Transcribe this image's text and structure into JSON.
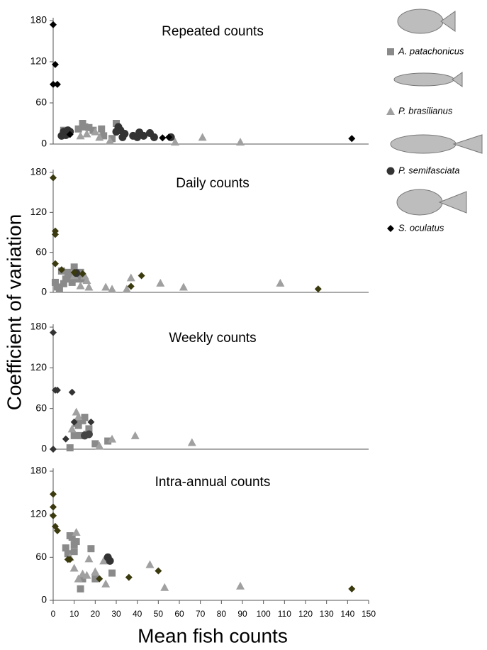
{
  "ylabel": "Coefficient of variation",
  "chart_data": [
    {
      "type": "scatter",
      "title": "Repeated counts",
      "xlim": [
        0,
        150
      ],
      "ylim": [
        0,
        180
      ],
      "yticks": [
        0,
        60,
        120,
        180
      ],
      "series": [
        {
          "name": "A. patachonicus",
          "marker": "square",
          "color": "#8a8a8a",
          "x": [
            5,
            7,
            12,
            14,
            15,
            17,
            19,
            23,
            24,
            28,
            30
          ],
          "values": [
            20,
            18,
            22,
            30,
            25,
            24,
            20,
            22,
            12,
            8,
            30
          ]
        },
        {
          "name": "P. brasilianus",
          "marker": "triangle",
          "color": "#a0a0a0",
          "x": [
            13,
            16,
            20,
            22,
            27,
            58,
            71,
            89
          ],
          "values": [
            12,
            15,
            18,
            10,
            5,
            3,
            10,
            3
          ]
        },
        {
          "name": "P. semifasciata",
          "marker": "circle",
          "color": "#333333",
          "x": [
            4,
            5,
            6,
            6,
            7,
            8,
            30,
            31,
            32,
            33,
            34,
            38,
            40,
            41,
            43,
            46,
            48,
            56
          ],
          "values": [
            12,
            18,
            13,
            15,
            20,
            18,
            18,
            25,
            20,
            10,
            15,
            12,
            10,
            17,
            12,
            16,
            10,
            10
          ]
        },
        {
          "name": "S. oculatus",
          "marker": "diamond",
          "color": "#000000",
          "x": [
            0,
            1,
            0,
            2,
            8,
            52,
            55,
            142
          ],
          "values": [
            174,
            116,
            87,
            87,
            14,
            9,
            10,
            8
          ]
        }
      ]
    },
    {
      "type": "scatter",
      "title": "Daily counts",
      "xlim": [
        0,
        150
      ],
      "ylim": [
        0,
        180
      ],
      "yticks": [
        0,
        60,
        120,
        180
      ],
      "series": [
        {
          "name": "A. patachonicus",
          "marker": "square",
          "color": "#8a8a8a",
          "x": [
            1,
            2,
            3,
            4,
            5,
            6,
            7,
            8,
            9,
            10,
            11,
            12,
            13,
            14
          ],
          "values": [
            15,
            8,
            5,
            32,
            13,
            20,
            30,
            25,
            15,
            38,
            28,
            20,
            30,
            20
          ]
        },
        {
          "name": "P. brasilianus",
          "marker": "triangle",
          "color": "#a0a0a0",
          "x": [
            10,
            13,
            15,
            16,
            17,
            25,
            28,
            35,
            37,
            51,
            62,
            108
          ],
          "values": [
            25,
            10,
            25,
            18,
            8,
            8,
            5,
            5,
            22,
            14,
            8,
            14
          ]
        },
        {
          "name": "P. semifasciata",
          "marker": "circle",
          "color": "#333333",
          "x": [
            11
          ],
          "values": [
            29
          ]
        },
        {
          "name": "S. oculatus",
          "marker": "diamond",
          "color": "#3a3a0e",
          "x": [
            0,
            1,
            1,
            1,
            4,
            10,
            14,
            37,
            42,
            126
          ],
          "values": [
            172,
            92,
            87,
            43,
            34,
            30,
            28,
            9,
            25,
            5
          ]
        }
      ]
    },
    {
      "type": "scatter",
      "title": "Weekly counts",
      "xlim": [
        0,
        150
      ],
      "ylim": [
        0,
        180
      ],
      "yticks": [
        0,
        60,
        120,
        180
      ],
      "series": [
        {
          "name": "A. patachonicus",
          "marker": "square",
          "color": "#8a8a8a",
          "x": [
            8,
            10,
            11,
            12,
            13,
            14,
            15,
            16,
            17,
            20,
            26
          ],
          "values": [
            2,
            20,
            38,
            35,
            20,
            42,
            47,
            22,
            30,
            8,
            12
          ]
        },
        {
          "name": "P. brasilianus",
          "marker": "triangle",
          "color": "#a0a0a0",
          "x": [
            9,
            11,
            12,
            22,
            28,
            39,
            66
          ],
          "values": [
            30,
            55,
            48,
            5,
            15,
            20,
            10
          ]
        },
        {
          "name": "P. semifasciata",
          "marker": "circle",
          "color": "#444444",
          "x": [
            15,
            17
          ],
          "values": [
            20,
            22
          ]
        },
        {
          "name": "S. oculatus",
          "marker": "diamond",
          "color": "#333333",
          "x": [
            0,
            1,
            2,
            0,
            6,
            9,
            10,
            18
          ],
          "values": [
            172,
            87,
            87,
            0,
            15,
            84,
            40,
            40
          ]
        }
      ]
    },
    {
      "type": "scatter",
      "title": "Intra-annual counts",
      "xlabel": "Mean fish counts",
      "xlim": [
        0,
        150
      ],
      "xticks": [
        0,
        10,
        20,
        30,
        40,
        50,
        60,
        70,
        80,
        90,
        100,
        110,
        120,
        130,
        140,
        150
      ],
      "ylim": [
        0,
        180
      ],
      "yticks": [
        0,
        60,
        120,
        180
      ],
      "series": [
        {
          "name": "A. patachonicus",
          "marker": "square",
          "color": "#8a8a8a",
          "x": [
            6,
            7,
            8,
            9,
            10,
            10,
            11,
            13,
            14,
            18,
            20,
            28
          ],
          "values": [
            73,
            65,
            90,
            88,
            78,
            68,
            82,
            16,
            30,
            72,
            30,
            38
          ]
        },
        {
          "name": "P. brasilianus",
          "marker": "triangle",
          "color": "#a0a0a0",
          "x": [
            8,
            10,
            11,
            12,
            14,
            16,
            17,
            20,
            24,
            25,
            46,
            53,
            89
          ],
          "values": [
            60,
            45,
            95,
            30,
            37,
            35,
            58,
            40,
            55,
            23,
            50,
            18,
            20
          ]
        },
        {
          "name": "P. semifasciata",
          "marker": "circle",
          "color": "#333333",
          "x": [
            26,
            27
          ],
          "values": [
            60,
            55
          ]
        },
        {
          "name": "S. oculatus",
          "marker": "diamond",
          "color": "#3a3a0e",
          "x": [
            0,
            0,
            0,
            1,
            2,
            7,
            8,
            22,
            36,
            50,
            142
          ],
          "values": [
            148,
            130,
            118,
            103,
            97,
            57,
            57,
            30,
            32,
            41,
            16
          ]
        }
      ]
    }
  ]
}
